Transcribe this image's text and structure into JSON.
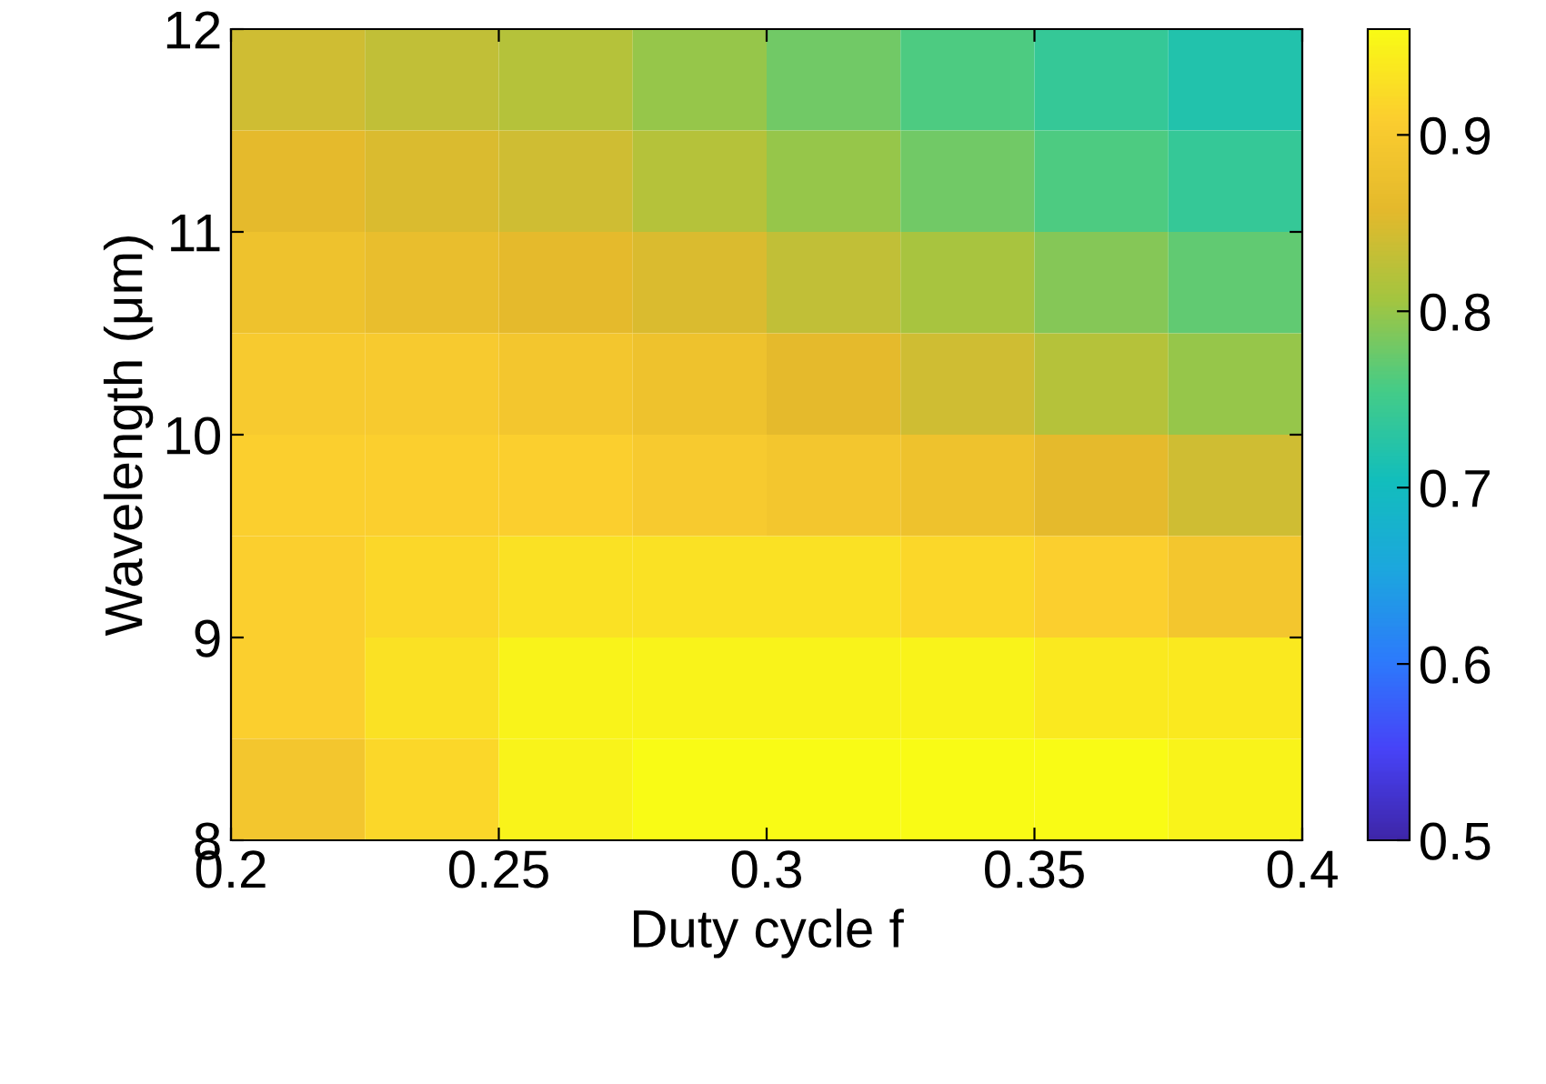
{
  "chart_data": {
    "type": "heatmap",
    "xlabel": "Duty cycle f",
    "ylabel": "Wavelength (μm)",
    "x": [
      0.2125,
      0.2375,
      0.2625,
      0.2875,
      0.3125,
      0.3375,
      0.3625,
      0.3875
    ],
    "y": [
      11.75,
      11.25,
      10.75,
      10.25,
      9.75,
      9.25,
      8.75,
      8.25
    ],
    "xlim": [
      0.2,
      0.4
    ],
    "xticks": [
      0.2,
      0.25,
      0.3,
      0.35,
      0.4
    ],
    "ylim": [
      8,
      12
    ],
    "yticks": [
      8,
      9,
      10,
      11,
      12
    ],
    "clim": [
      0.5,
      0.96
    ],
    "cticks": [
      0.5,
      0.6,
      0.7,
      0.8,
      0.9
    ],
    "cells": [
      [
        0.84,
        0.83,
        0.82,
        0.8,
        0.78,
        0.76,
        0.74,
        0.72
      ],
      [
        0.86,
        0.85,
        0.84,
        0.82,
        0.8,
        0.78,
        0.76,
        0.74
      ],
      [
        0.88,
        0.87,
        0.86,
        0.85,
        0.83,
        0.81,
        0.79,
        0.77
      ],
      [
        0.9,
        0.9,
        0.89,
        0.88,
        0.86,
        0.84,
        0.82,
        0.8
      ],
      [
        0.91,
        0.91,
        0.91,
        0.9,
        0.89,
        0.88,
        0.86,
        0.84
      ],
      [
        0.91,
        0.92,
        0.93,
        0.93,
        0.93,
        0.92,
        0.91,
        0.89
      ],
      [
        0.91,
        0.93,
        0.95,
        0.95,
        0.95,
        0.95,
        0.94,
        0.94
      ],
      [
        0.89,
        0.92,
        0.95,
        0.96,
        0.96,
        0.96,
        0.96,
        0.95
      ]
    ]
  }
}
